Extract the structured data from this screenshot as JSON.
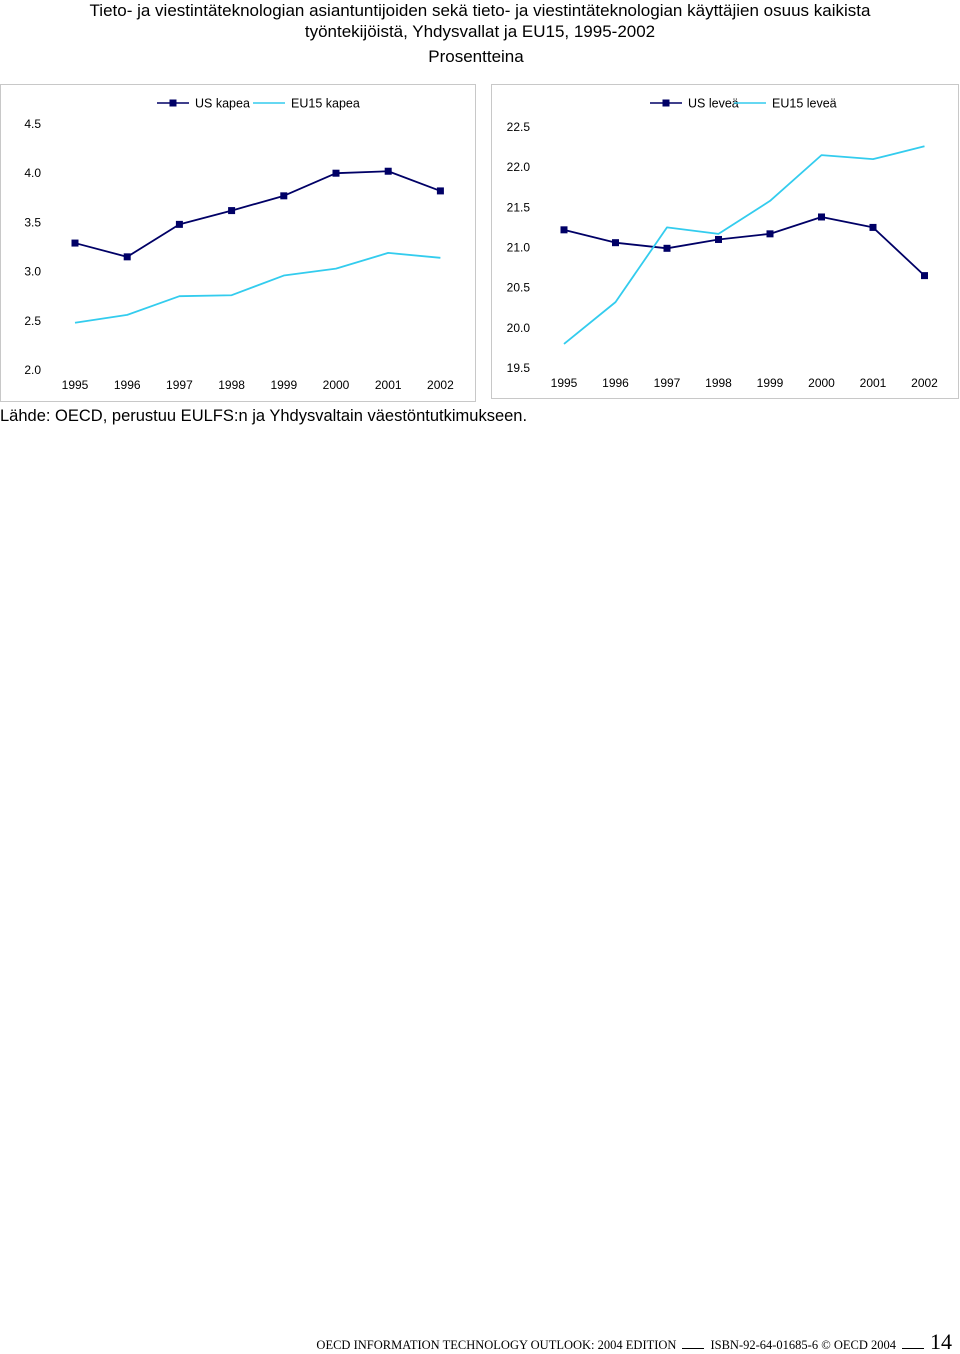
{
  "title": {
    "line1": "Tieto- ja viestintäteknologian asiantuntijoiden sekä tieto- ja viestintäteknologian käyttäjien osuus kaikista",
    "line2": "työntekijöistä, Yhdysvallat ja EU15, 1995-2002"
  },
  "subtitle": "Prosentteina",
  "source": "Lähde: OECD, perustuu EULFS:n ja Yhdysvaltain väestöntutkimukseen.",
  "footer": {
    "text": "OECD INFORMATION TECHNOLOGY OUTLOOK: 2004 EDITION",
    "isbn": "ISBN-92-64-01685-6 © OECD 2004",
    "page": "14"
  },
  "colors": {
    "us": "#000066",
    "eu": "#33ccee"
  },
  "chart_data": [
    {
      "type": "line",
      "categories": [
        "1995",
        "1996",
        "1997",
        "1998",
        "1999",
        "2000",
        "2001",
        "2002"
      ],
      "ylim": [
        2.0,
        4.5
      ],
      "yticks": [
        "2.0",
        "2.5",
        "3.0",
        "3.5",
        "4.0",
        "4.5"
      ],
      "legend_position": "top",
      "grid": false,
      "series": [
        {
          "name": "US kapea",
          "marker": "square",
          "values": [
            3.29,
            3.15,
            3.48,
            3.62,
            3.77,
            4.0,
            4.02,
            3.82
          ]
        },
        {
          "name": "EU15 kapea",
          "marker": "none",
          "values": [
            2.48,
            2.56,
            2.75,
            2.76,
            2.96,
            3.03,
            3.19,
            3.14
          ]
        }
      ]
    },
    {
      "type": "line",
      "categories": [
        "1995",
        "1996",
        "1997",
        "1998",
        "1999",
        "2000",
        "2001",
        "2002"
      ],
      "ylim": [
        19.5,
        22.5
      ],
      "yticks": [
        "19.5",
        "20.0",
        "20.5",
        "21.0",
        "21.5",
        "22.0",
        "22.5"
      ],
      "legend_position": "top",
      "grid": false,
      "series": [
        {
          "name": "US leveä",
          "marker": "square",
          "values": [
            21.22,
            21.06,
            20.99,
            21.1,
            21.17,
            21.38,
            21.25,
            20.65
          ]
        },
        {
          "name": "EU15 leveä",
          "marker": "none",
          "values": [
            19.8,
            20.32,
            21.25,
            21.17,
            21.58,
            22.15,
            22.1,
            22.26
          ]
        }
      ]
    }
  ]
}
